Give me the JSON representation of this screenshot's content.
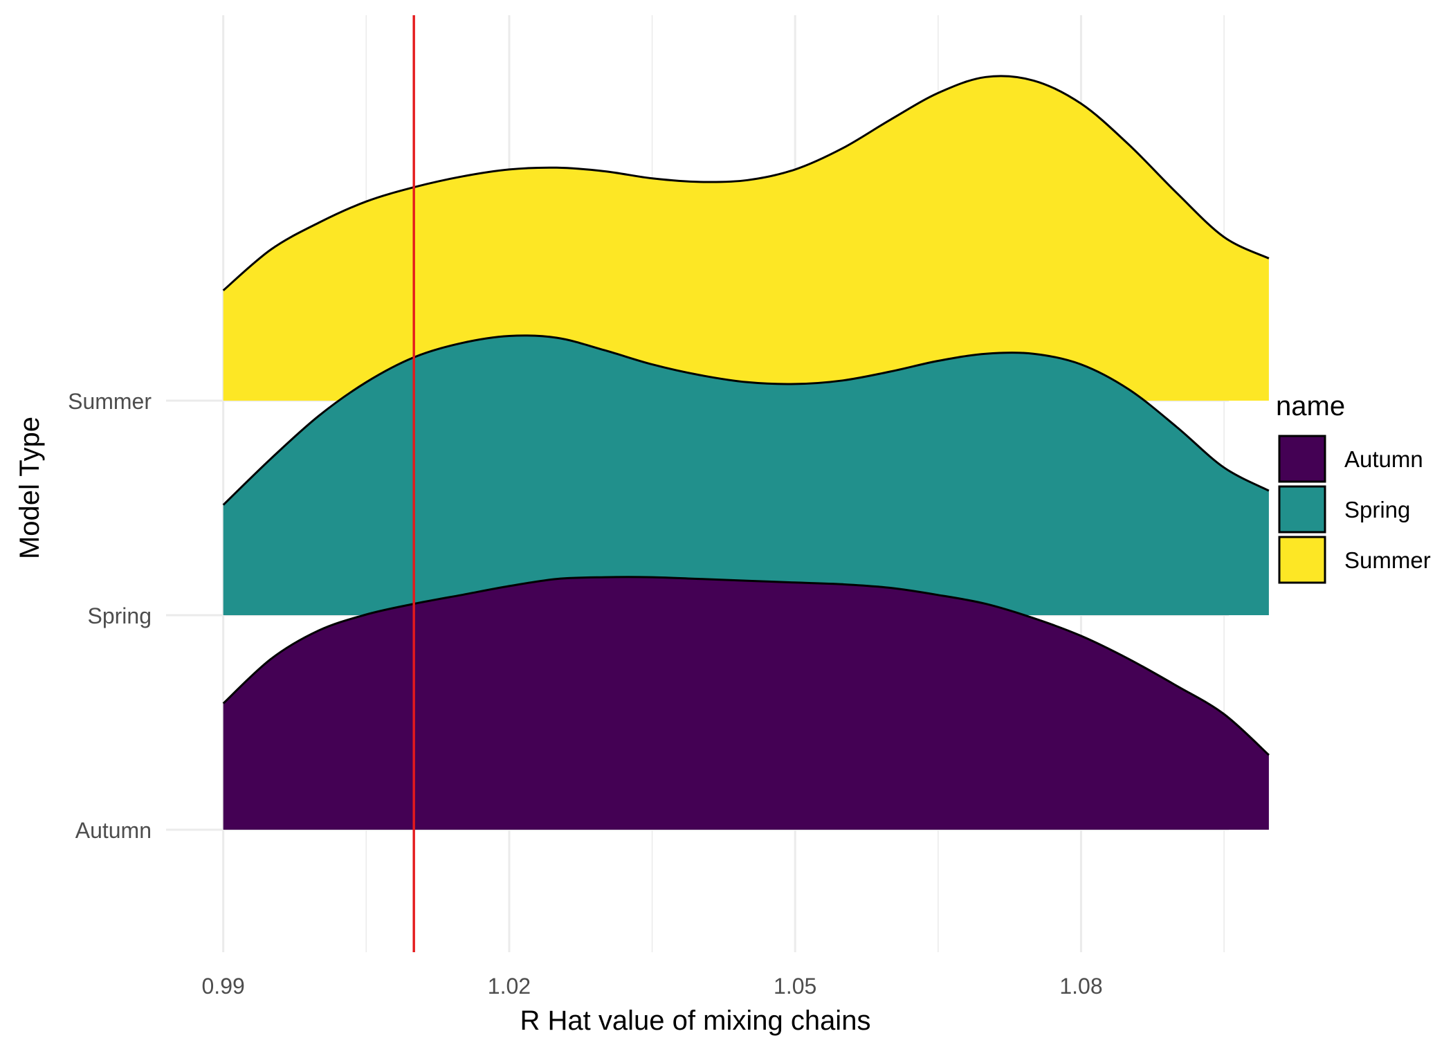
{
  "chart_data": {
    "type": "ridgeline",
    "xlabel": "R Hat value of mixing chains",
    "ylabel": "Model Type",
    "xlim": [
      0.984,
      1.0955
    ],
    "x_ticks": [
      0.99,
      1.02,
      1.05,
      1.08
    ],
    "x_tick_labels": [
      "0.99",
      "1.02",
      "1.05",
      "1.08"
    ],
    "x_minor_ticks": [
      1.005,
      1.035,
      1.065,
      1.095
    ],
    "x_range": [
      0.99,
      1.0997
    ],
    "categories": [
      "Autumn",
      "Spring",
      "Summer"
    ],
    "reference_line": {
      "x": 1.01,
      "color": "#e41a1c"
    },
    "grid": true,
    "legend": {
      "title": "name",
      "position": "right",
      "entries": [
        {
          "label": "Autumn",
          "color": "#440154"
        },
        {
          "label": "Spring",
          "color": "#21908c"
        },
        {
          "label": "Summer",
          "color": "#fde725"
        }
      ]
    },
    "series": [
      {
        "name": "Summer",
        "color": "#fde725",
        "baseline_index": 2,
        "x": [
          0.99,
          0.995,
          1.0,
          1.005,
          1.01,
          1.015,
          1.02,
          1.025,
          1.03,
          1.035,
          1.04,
          1.045,
          1.05,
          1.055,
          1.06,
          1.065,
          1.07,
          1.075,
          1.08,
          1.085,
          1.09,
          1.095,
          1.0997
        ],
        "density": [
          0.62,
          0.85,
          1.0,
          1.12,
          1.2,
          1.26,
          1.3,
          1.31,
          1.29,
          1.25,
          1.23,
          1.24,
          1.3,
          1.42,
          1.58,
          1.73,
          1.82,
          1.8,
          1.67,
          1.44,
          1.17,
          0.92,
          0.8
        ]
      },
      {
        "name": "Spring",
        "color": "#21908c",
        "baseline_index": 1,
        "x": [
          0.99,
          0.995,
          1.0,
          1.005,
          1.01,
          1.015,
          1.02,
          1.025,
          1.03,
          1.035,
          1.04,
          1.045,
          1.05,
          1.055,
          1.06,
          1.065,
          1.07,
          1.075,
          1.08,
          1.085,
          1.09,
          1.095,
          1.0997
        ],
        "density": [
          0.62,
          0.88,
          1.12,
          1.31,
          1.45,
          1.53,
          1.57,
          1.56,
          1.49,
          1.41,
          1.35,
          1.31,
          1.3,
          1.32,
          1.37,
          1.43,
          1.47,
          1.47,
          1.41,
          1.27,
          1.06,
          0.83,
          0.7
        ]
      },
      {
        "name": "Autumn",
        "color": "#440154",
        "baseline_index": 0,
        "x": [
          0.99,
          0.995,
          1.0,
          1.005,
          1.01,
          1.015,
          1.02,
          1.025,
          1.03,
          1.035,
          1.04,
          1.045,
          1.05,
          1.055,
          1.06,
          1.065,
          1.07,
          1.075,
          1.08,
          1.085,
          1.09,
          1.095,
          1.0997
        ],
        "density": [
          0.71,
          0.96,
          1.12,
          1.21,
          1.27,
          1.32,
          1.37,
          1.41,
          1.42,
          1.42,
          1.41,
          1.4,
          1.39,
          1.38,
          1.36,
          1.32,
          1.27,
          1.19,
          1.09,
          0.96,
          0.81,
          0.65,
          0.42
        ]
      }
    ]
  }
}
